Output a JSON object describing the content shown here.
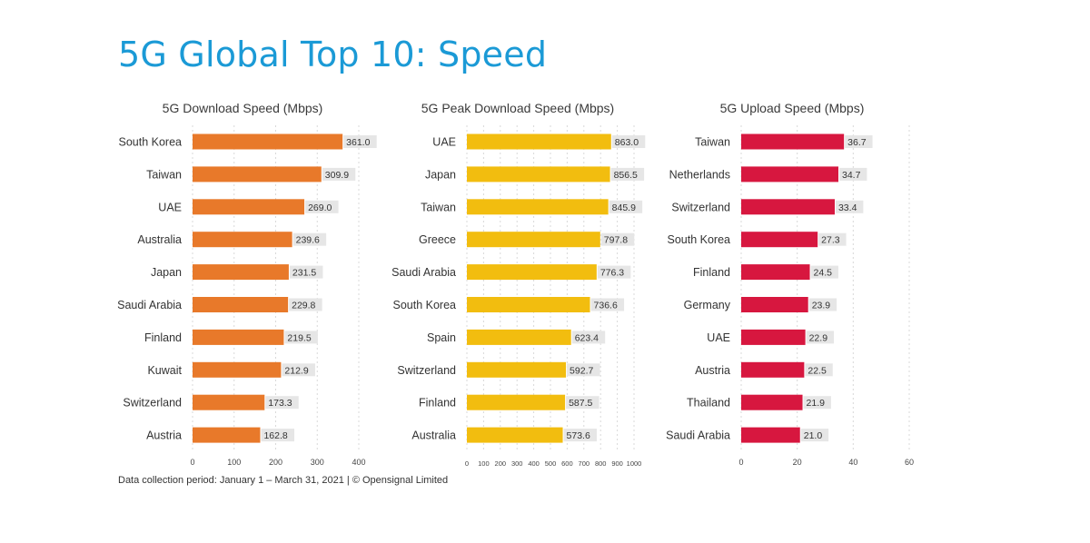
{
  "page": {
    "title": "5G Global Top 10: Speed",
    "footer": "Data collection period: January 1 – March 31, 2021  |  © Opensignal Limited"
  },
  "chart_data": [
    {
      "type": "bar",
      "orientation": "horizontal",
      "title": "5G Download Speed (Mbps)",
      "categories": [
        "South Korea",
        "Taiwan",
        "UAE",
        "Australia",
        "Japan",
        "Saudi Arabia",
        "Finland",
        "Kuwait",
        "Switzerland",
        "Austria"
      ],
      "values": [
        361.0,
        309.9,
        269.0,
        239.6,
        231.5,
        229.8,
        219.5,
        212.9,
        173.3,
        162.8
      ],
      "value_labels": [
        "361.0",
        "309.9",
        "269.0",
        "239.6",
        "231.5",
        "229.8",
        "219.5",
        "212.9",
        "173.3",
        "162.8"
      ],
      "xlim": [
        0,
        400
      ],
      "xticks": [
        0,
        100,
        200,
        300,
        400
      ],
      "xlabel": "",
      "ylabel": "",
      "color": "#e8792a",
      "grid": true
    },
    {
      "type": "bar",
      "orientation": "horizontal",
      "title": "5G Peak Download Speed (Mbps)",
      "categories": [
        "UAE",
        "Japan",
        "Taiwan",
        "Greece",
        "Saudi Arabia",
        "South Korea",
        "Spain",
        "Switzerland",
        "Finland",
        "Australia"
      ],
      "values": [
        863.0,
        856.5,
        845.9,
        797.8,
        776.3,
        736.6,
        623.4,
        592.7,
        587.5,
        573.6
      ],
      "value_labels": [
        "863.0",
        "856.5",
        "845.9",
        "797.8",
        "776.3",
        "736.6",
        "623.4",
        "592.7",
        "587.5",
        "573.6"
      ],
      "xlim": [
        0,
        1000
      ],
      "xticks": [
        0,
        100,
        200,
        300,
        400,
        500,
        600,
        700,
        800,
        900,
        1000
      ],
      "xlabel": "",
      "ylabel": "",
      "color": "#f2bd0f",
      "grid": true
    },
    {
      "type": "bar",
      "orientation": "horizontal",
      "title": "5G Upload Speed (Mbps)",
      "categories": [
        "Taiwan",
        "Netherlands",
        "Switzerland",
        "South Korea",
        "Finland",
        "Germany",
        "UAE",
        "Austria",
        "Thailand",
        "Saudi Arabia"
      ],
      "values": [
        36.7,
        34.7,
        33.4,
        27.3,
        24.5,
        23.9,
        22.9,
        22.5,
        21.9,
        21.0
      ],
      "value_labels": [
        "36.7",
        "34.7",
        "33.4",
        "27.3",
        "24.5",
        "23.9",
        "22.9",
        "22.5",
        "21.9",
        "21.0"
      ],
      "xlim": [
        0,
        60
      ],
      "xticks": [
        0,
        20,
        40,
        60
      ],
      "xlabel": "",
      "ylabel": "",
      "color": "#d7173f",
      "grid": true
    }
  ]
}
